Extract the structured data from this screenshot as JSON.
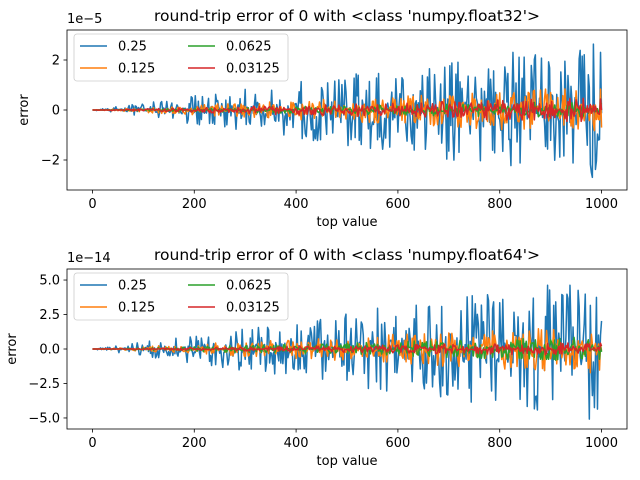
{
  "chart_data": [
    {
      "type": "line",
      "title": "round-trip error of 0 with <class 'numpy.float32'>",
      "xlabel": "top value",
      "ylabel": "error",
      "offset_label": "1e−5",
      "xlim": [
        -50,
        1050
      ],
      "ylim": [
        -3.2,
        3.2
      ],
      "xticks": [
        0,
        200,
        400,
        600,
        800,
        1000
      ],
      "yticks": [
        -2,
        0,
        2
      ],
      "ytick_labels": [
        "−2",
        "0",
        "2"
      ],
      "grid": false,
      "legend": {
        "placement": "top-left",
        "columns": 2
      },
      "series": [
        {
          "name": "0.25",
          "color": "#1f77b4",
          "envelope_max_abs": 2.85,
          "envelope_exponent": 1.0
        },
        {
          "name": "0.125",
          "color": "#ff7f0e",
          "envelope_max_abs": 1.0,
          "envelope_exponent": 1.0
        },
        {
          "name": "0.0625",
          "color": "#2ca02c",
          "envelope_max_abs": 0.35,
          "envelope_exponent": 1.0
        },
        {
          "name": "0.03125",
          "color": "#d62728",
          "envelope_max_abs": 0.5,
          "envelope_exponent": 1.0
        }
      ],
      "x_range": [
        0,
        1000
      ]
    },
    {
      "type": "line",
      "title": "round-trip error of 0 with <class 'numpy.float64'>",
      "xlabel": "top value",
      "ylabel": "error",
      "offset_label": "1e−14",
      "xlim": [
        -50,
        1050
      ],
      "ylim": [
        -5.8,
        5.8
      ],
      "xticks": [
        0,
        200,
        400,
        600,
        800,
        1000
      ],
      "yticks": [
        -5.0,
        -2.5,
        0.0,
        2.5,
        5.0
      ],
      "ytick_labels": [
        "−5.0",
        "−2.5",
        "0.0",
        "2.5",
        "5.0"
      ],
      "grid": false,
      "legend": {
        "placement": "top-left",
        "columns": 2
      },
      "series": [
        {
          "name": "0.25",
          "color": "#1f77b4",
          "envelope_max_abs": 5.3,
          "envelope_exponent": 1.0
        },
        {
          "name": "0.125",
          "color": "#ff7f0e",
          "envelope_max_abs": 1.8,
          "envelope_exponent": 1.0
        },
        {
          "name": "0.0625",
          "color": "#2ca02c",
          "envelope_max_abs": 0.9,
          "envelope_exponent": 1.0
        },
        {
          "name": "0.03125",
          "color": "#d62728",
          "envelope_max_abs": 0.5,
          "envelope_exponent": 1.0
        }
      ],
      "x_range": [
        0,
        1000
      ]
    }
  ]
}
